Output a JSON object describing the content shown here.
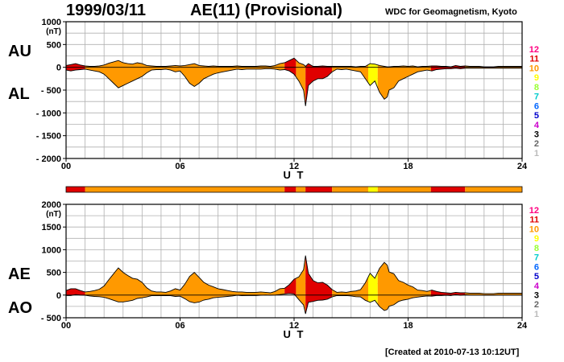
{
  "header": {
    "date": "1999/03/11",
    "title": "AE(11) (Provisional)",
    "source": "WDC for Geomagnetism, Kyoto"
  },
  "footer": "[Created at 2010-07-13 10:12UT]",
  "legend": {
    "levels": [
      "12",
      "11",
      "10",
      "9",
      "8",
      "7",
      "6",
      "5",
      "4",
      "3",
      "2",
      "1"
    ],
    "colors": [
      "#ff0080",
      "#e00000",
      "#ff9900",
      "#ffff00",
      "#99ff33",
      "#00cccc",
      "#0066ff",
      "#0000cc",
      "#cc00cc",
      "#000000",
      "#666666",
      "#bbbbbb"
    ]
  },
  "colors": {
    "station_11": "#ff3300",
    "station_10": "#ff9900",
    "station_9": "#ffff00"
  },
  "chart_data": [
    {
      "type": "area",
      "name": "AU/AL",
      "labels_left": [
        "AU",
        "AL"
      ],
      "unit": "(nT)",
      "ylim": [
        -2000,
        1000
      ],
      "yticks": [
        "1000",
        "500",
        "0",
        "- 500",
        "- 1000",
        "- 1500",
        "- 2000"
      ],
      "yticks_values": [
        1000,
        500,
        0,
        -500,
        -1000,
        -1500,
        -2000
      ],
      "xticks": [
        "00",
        "06",
        "12",
        "18",
        "24"
      ],
      "xlabel": "U T",
      "x": [
        0,
        0.25,
        0.5,
        0.75,
        1,
        1.25,
        1.5,
        1.75,
        2,
        2.25,
        2.5,
        2.75,
        3,
        3.25,
        3.5,
        3.75,
        4,
        4.25,
        4.5,
        4.75,
        5,
        5.25,
        5.5,
        5.75,
        6,
        6.25,
        6.5,
        6.75,
        7,
        7.25,
        7.5,
        7.75,
        8,
        8.25,
        8.5,
        8.75,
        9,
        9.25,
        9.5,
        9.75,
        10,
        10.25,
        10.5,
        10.75,
        11,
        11.25,
        11.5,
        11.75,
        12,
        12.25,
        12.5,
        12.6,
        12.75,
        13,
        13.25,
        13.5,
        13.75,
        14,
        14.25,
        14.5,
        14.75,
        15,
        15.25,
        15.5,
        15.75,
        16,
        16.25,
        16.5,
        16.75,
        16.9,
        17,
        17.25,
        17.5,
        17.75,
        18,
        18.25,
        18.5,
        18.75,
        19,
        19.25,
        19.5,
        19.75,
        20,
        20.25,
        20.5,
        20.75,
        21,
        21.25,
        21.5,
        21.75,
        22,
        22.25,
        22.5,
        22.75,
        23,
        23.25,
        23.5,
        23.75,
        24
      ],
      "series": [
        {
          "name": "AU",
          "values": [
            40,
            60,
            80,
            50,
            30,
            20,
            20,
            30,
            50,
            90,
            120,
            150,
            100,
            80,
            70,
            100,
            80,
            40,
            30,
            20,
            20,
            20,
            30,
            40,
            30,
            40,
            60,
            80,
            40,
            30,
            20,
            30,
            20,
            20,
            20,
            20,
            30,
            20,
            20,
            20,
            20,
            30,
            30,
            20,
            40,
            80,
            100,
            150,
            200,
            100,
            60,
            20,
            80,
            20,
            20,
            30,
            20,
            20,
            20,
            20,
            20,
            20,
            10,
            20,
            20,
            80,
            70,
            40,
            20,
            10,
            10,
            20,
            20,
            30,
            20,
            30,
            10,
            20,
            20,
            30,
            30,
            20,
            20,
            10,
            40,
            20,
            30,
            20,
            20,
            20,
            10,
            10,
            10,
            20,
            20,
            20,
            20,
            20,
            20
          ]
        },
        {
          "name": "AL",
          "values": [
            -60,
            -80,
            -60,
            -50,
            -40,
            -60,
            -80,
            -100,
            -150,
            -250,
            -350,
            -450,
            -400,
            -350,
            -300,
            -250,
            -200,
            -120,
            -60,
            -50,
            -50,
            -40,
            -60,
            -100,
            -80,
            -200,
            -350,
            -420,
            -350,
            -250,
            -200,
            -150,
            -120,
            -100,
            -80,
            -60,
            -40,
            -50,
            -40,
            -40,
            -40,
            -40,
            -30,
            -30,
            -40,
            -60,
            -50,
            -80,
            -150,
            -300,
            -500,
            -850,
            -400,
            -300,
            -250,
            -250,
            -200,
            -100,
            -40,
            -50,
            -40,
            -60,
            -80,
            -100,
            -250,
            -400,
            -300,
            -550,
            -700,
            -650,
            -500,
            -450,
            -300,
            -250,
            -200,
            -150,
            -100,
            -80,
            -60,
            -80,
            -50,
            -40,
            -30,
            -30,
            -20,
            -30,
            -20,
            -20,
            -20,
            -20,
            -20,
            -20,
            -20,
            -20,
            -20,
            -20,
            -20,
            -20,
            -20
          ]
        }
      ],
      "grid": true
    },
    {
      "type": "area",
      "name": "AE/AO",
      "labels_left": [
        "AE",
        "AO"
      ],
      "unit": "(nT)",
      "ylim": [
        -500,
        2000
      ],
      "yticks": [
        "2000",
        "1500",
        "1000",
        "500",
        "0",
        "- 500"
      ],
      "yticks_values": [
        2000,
        1500,
        1000,
        500,
        0,
        -500
      ],
      "xticks": [
        "00",
        "06",
        "12",
        "18",
        "24"
      ],
      "xlabel": "U T",
      "grid": true,
      "x_ref": "same as first chart",
      "station_bar": [
        {
          "from": 0,
          "to": 1,
          "level": "11"
        },
        {
          "from": 1,
          "to": 11.5,
          "level": "10"
        },
        {
          "from": 11.5,
          "to": 12.1,
          "level": "11"
        },
        {
          "from": 12.1,
          "to": 12.6,
          "level": "10"
        },
        {
          "from": 12.6,
          "to": 14,
          "level": "11"
        },
        {
          "from": 14,
          "to": 15.9,
          "level": "10"
        },
        {
          "from": 15.9,
          "to": 16.4,
          "level": "9"
        },
        {
          "from": 16.4,
          "to": 19.2,
          "level": "10"
        },
        {
          "from": 19.2,
          "to": 21,
          "level": "11"
        },
        {
          "from": 21,
          "to": 24,
          "level": "10"
        }
      ]
    }
  ]
}
